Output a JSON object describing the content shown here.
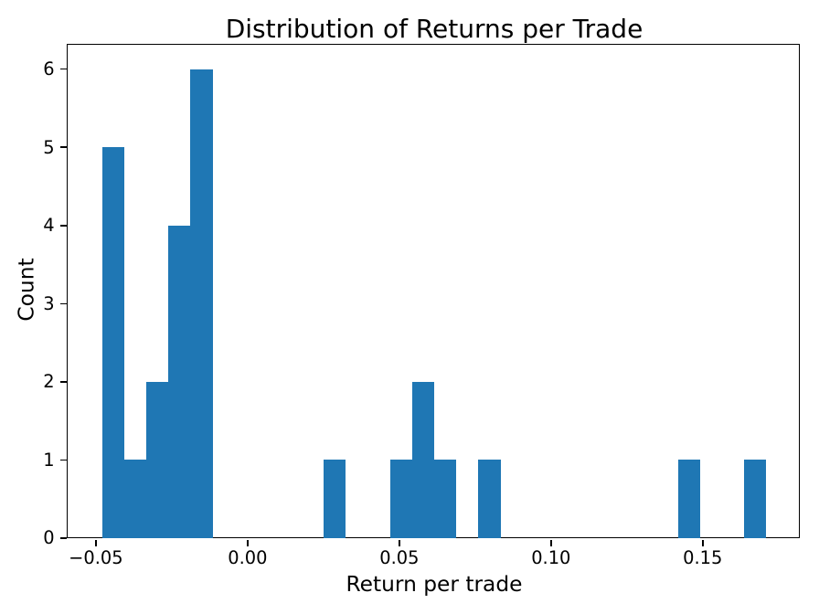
{
  "chart_data": {
    "type": "bar",
    "subtype": "histogram",
    "title": "Distribution of Returns per Trade",
    "xlabel": "Return per trade",
    "ylabel": "Count",
    "bar_color": "#1f77b4",
    "background_color": "#ffffff",
    "grid": false,
    "legend": null,
    "bins": {
      "start": -0.048,
      "width": 0.0073,
      "counts": [
        5,
        1,
        2,
        4,
        6,
        0,
        0,
        0,
        0,
        0,
        1,
        0,
        0,
        1,
        2,
        1,
        0,
        1,
        0,
        0,
        0,
        0,
        0,
        0,
        0,
        0,
        1,
        0,
        0,
        1
      ]
    },
    "xlim": [
      -0.059,
      0.182
    ],
    "ylim": [
      0,
      6.3
    ],
    "xticks": [
      {
        "value": -0.05,
        "label": "−0.05"
      },
      {
        "value": 0.0,
        "label": "0.00"
      },
      {
        "value": 0.05,
        "label": "0.05"
      },
      {
        "value": 0.1,
        "label": "0.10"
      },
      {
        "value": 0.15,
        "label": "0.15"
      }
    ],
    "yticks": [
      {
        "value": 0,
        "label": "0"
      },
      {
        "value": 1,
        "label": "1"
      },
      {
        "value": 2,
        "label": "2"
      },
      {
        "value": 3,
        "label": "3"
      },
      {
        "value": 4,
        "label": "4"
      },
      {
        "value": 5,
        "label": "5"
      },
      {
        "value": 6,
        "label": "6"
      }
    ]
  }
}
